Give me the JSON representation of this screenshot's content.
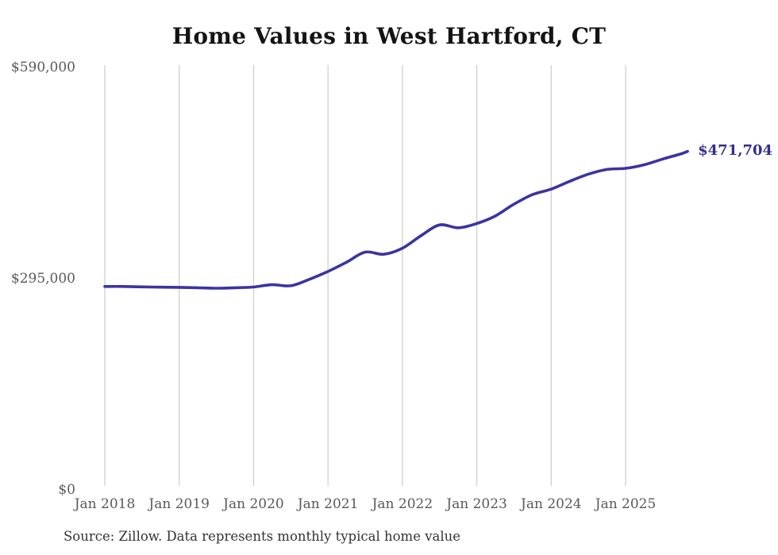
{
  "chart_data": {
    "type": "line",
    "title": "Home Values in West Hartford, CT",
    "source_note": "Source: Zillow. Data represents monthly typical home value",
    "end_label": "$471,704",
    "xlabel": "",
    "ylabel": "",
    "ylim": [
      0,
      590000
    ],
    "grid": "vertical-only",
    "legend": "none",
    "y_ticks": [
      {
        "label": "$0",
        "value": 0
      },
      {
        "label": "$295,000",
        "value": 295000
      },
      {
        "label": "$590,000",
        "value": 590000
      }
    ],
    "x_ticks": [
      {
        "label": "Jan 2018",
        "date": "2018-01"
      },
      {
        "label": "Jan 2019",
        "date": "2019-01"
      },
      {
        "label": "Jan 2020",
        "date": "2020-01"
      },
      {
        "label": "Jan 2021",
        "date": "2021-01"
      },
      {
        "label": "Jan 2022",
        "date": "2022-01"
      },
      {
        "label": "Jan 2023",
        "date": "2023-01"
      },
      {
        "label": "Jan 2024",
        "date": "2024-01"
      },
      {
        "label": "Jan 2025",
        "date": "2025-01"
      }
    ],
    "series": [
      {
        "name": "Monthly typical home value",
        "color": "#3a34a2",
        "points": [
          {
            "date": "2018-01",
            "value": 283000
          },
          {
            "date": "2018-04",
            "value": 283000
          },
          {
            "date": "2018-07",
            "value": 282500
          },
          {
            "date": "2018-10",
            "value": 282000
          },
          {
            "date": "2019-01",
            "value": 281800
          },
          {
            "date": "2019-04",
            "value": 281200
          },
          {
            "date": "2019-07",
            "value": 280600
          },
          {
            "date": "2019-10",
            "value": 281200
          },
          {
            "date": "2020-01",
            "value": 282300
          },
          {
            "date": "2020-04",
            "value": 285500
          },
          {
            "date": "2020-07",
            "value": 284000
          },
          {
            "date": "2020-10",
            "value": 293000
          },
          {
            "date": "2021-01",
            "value": 304000
          },
          {
            "date": "2021-04",
            "value": 317000
          },
          {
            "date": "2021-07",
            "value": 331000
          },
          {
            "date": "2021-10",
            "value": 328000
          },
          {
            "date": "2022-01",
            "value": 336500
          },
          {
            "date": "2022-04",
            "value": 354000
          },
          {
            "date": "2022-07",
            "value": 369000
          },
          {
            "date": "2022-10",
            "value": 365000
          },
          {
            "date": "2023-01",
            "value": 371000
          },
          {
            "date": "2023-04",
            "value": 381500
          },
          {
            "date": "2023-07",
            "value": 398000
          },
          {
            "date": "2023-10",
            "value": 411500
          },
          {
            "date": "2024-01",
            "value": 419000
          },
          {
            "date": "2024-04",
            "value": 430000
          },
          {
            "date": "2024-07",
            "value": 440000
          },
          {
            "date": "2024-10",
            "value": 446500
          },
          {
            "date": "2025-01",
            "value": 448000
          },
          {
            "date": "2025-04",
            "value": 453000
          },
          {
            "date": "2025-07",
            "value": 461000
          },
          {
            "date": "2025-10",
            "value": 468500
          },
          {
            "date": "2025-11",
            "value": 471704
          }
        ]
      }
    ],
    "colors": {
      "line": "#3a34a2",
      "end_label": "#32308f",
      "grid": "#cccccc",
      "tick_text": "#595959",
      "title_text": "#141414",
      "source_text": "#333333",
      "background": "#ffffff"
    }
  }
}
